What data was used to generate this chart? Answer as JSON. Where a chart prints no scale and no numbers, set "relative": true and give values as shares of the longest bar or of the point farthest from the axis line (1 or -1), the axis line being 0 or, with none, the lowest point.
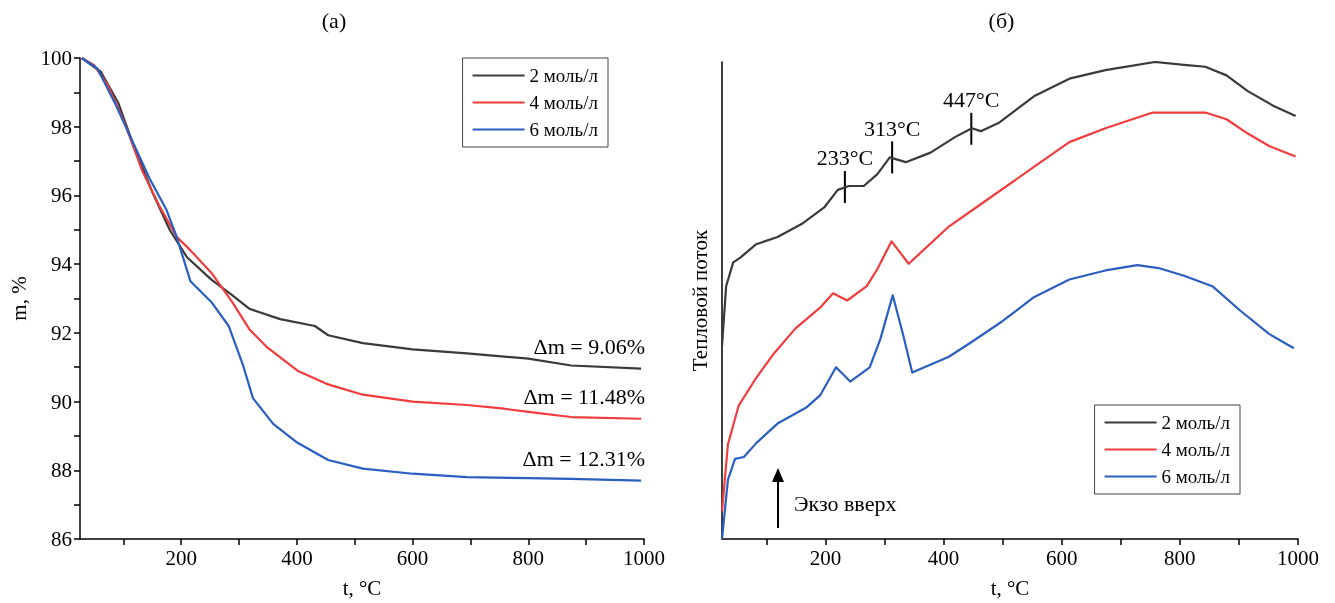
{
  "chart_data": [
    {
      "type": "line",
      "title": "(a)",
      "xlabel": "t, °C",
      "ylabel": "m, %",
      "xlim": [
        25,
        1000
      ],
      "ylim": [
        86,
        100
      ],
      "xticks": [
        {
          "value": 100,
          "label": null
        },
        200,
        {
          "value": 300,
          "label": null
        },
        400,
        {
          "value": 500,
          "label": null
        },
        600,
        {
          "value": 700,
          "label": null
        },
        800,
        {
          "value": 900,
          "label": null
        },
        1000
      ],
      "yticks": [
        86,
        {
          "value": 87,
          "label": null
        },
        88,
        {
          "value": 89,
          "label": null
        },
        90,
        {
          "value": 91,
          "label": null
        },
        92,
        {
          "value": 93,
          "label": null
        },
        94,
        {
          "value": 95,
          "label": null
        },
        96,
        {
          "value": 97,
          "label": null
        },
        98,
        {
          "value": 99,
          "label": null
        },
        100
      ],
      "legend": "top right",
      "annotations": [
        "Δm = 9.06%",
        "Δm = 11.48%",
        "Δm = 12.31%"
      ],
      "series": [
        {
          "name": "2 моль/л",
          "color": "#3a3a3a",
          "x": [
            28,
            61,
            91,
            121,
            150,
            180,
            210,
            252,
            288,
            318,
            371,
            431,
            454,
            514,
            600,
            694,
            800,
            874,
            995
          ],
          "values": [
            100,
            99.6,
            98.7,
            97.3,
            96.1,
            95.0,
            94.2,
            93.55,
            93.1,
            92.7,
            92.4,
            92.2,
            91.93,
            91.7,
            91.52,
            91.4,
            91.25,
            91.05,
            90.96
          ]
        },
        {
          "name": "4 моль/л",
          "color": "#f03c3c",
          "x": [
            28,
            49,
            73,
            103,
            133,
            162,
            192,
            216,
            252,
            288,
            318,
            347,
            401,
            454,
            514,
            600,
            694,
            754,
            800,
            874,
            995
          ],
          "values": [
            100,
            99.8,
            99.2,
            98.07,
            96.7,
            95.7,
            94.8,
            94.4,
            93.75,
            92.9,
            92.1,
            91.6,
            90.9,
            90.5,
            90.2,
            90.0,
            89.9,
            89.8,
            89.7,
            89.55,
            89.5
          ]
        },
        {
          "name": "6 моль/л",
          "color": "#2a5ec0",
          "x": [
            28,
            55,
            85,
            115,
            145,
            174,
            192,
            216,
            252,
            282,
            306,
            324,
            359,
            401,
            454,
            514,
            600,
            694,
            800,
            874,
            995
          ],
          "values": [
            100,
            99.7,
            98.7,
            97.6,
            96.5,
            95.6,
            94.8,
            93.5,
            92.9,
            92.2,
            91.1,
            90.1,
            89.35,
            88.8,
            88.3,
            88.05,
            87.9,
            87.8,
            87.77,
            87.75,
            87.7
          ]
        }
      ]
    },
    {
      "type": "line",
      "title": "(б)",
      "xlabel": "t, °C",
      "ylabel": "Тепловой поток",
      "relative": true,
      "xlim": [
        25,
        1000
      ],
      "xticks": [
        {
          "value": 100,
          "label": null
        },
        200,
        {
          "value": 300,
          "label": null
        },
        400,
        {
          "value": 500,
          "label": null
        },
        600,
        {
          "value": 700,
          "label": null
        },
        800,
        {
          "value": 900,
          "label": null
        },
        1000
      ],
      "legend": "bottom right",
      "annotations": [
        {
          "text": "233°C",
          "x": 233,
          "y": 0.738
        },
        {
          "text": "313°C",
          "x": 313,
          "y": 0.8
        },
        {
          "text": "447°C",
          "x": 447,
          "y": 0.86
        },
        "Экзо вверх"
      ],
      "series": [
        {
          "name": "2 моль/л",
          "color": "#3a3a3a",
          "x": [
            25,
            32,
            44,
            56,
            83,
            119,
            162,
            198,
            221,
            240,
            265,
            288,
            309,
            336,
            378,
            420,
            448,
            463,
            493,
            553,
            613,
            674,
            758,
            807,
            843,
            879,
            915,
            957,
            996
          ],
          "values": [
            0.404,
            0.53,
            0.58,
            0.59,
            0.618,
            0.633,
            0.662,
            0.695,
            0.732,
            0.74,
            0.74,
            0.765,
            0.8,
            0.79,
            0.81,
            0.843,
            0.861,
            0.855,
            0.872,
            0.928,
            0.965,
            0.983,
            1.0,
            0.994,
            0.99,
            0.972,
            0.939,
            0.909,
            0.887
          ]
        },
        {
          "name": "4 моль/л",
          "color": "#f03c3c",
          "x": [
            25,
            35,
            53,
            83,
            113,
            149,
            191,
            213,
            237,
            270,
            288,
            312,
            341,
            409,
            469,
            553,
            613,
            674,
            754,
            807,
            843,
            879,
            915,
            951,
            996
          ],
          "values": [
            0.058,
            0.198,
            0.279,
            0.338,
            0.389,
            0.441,
            0.485,
            0.515,
            0.5,
            0.53,
            0.566,
            0.624,
            0.577,
            0.655,
            0.707,
            0.78,
            0.832,
            0.861,
            0.894,
            0.894,
            0.894,
            0.88,
            0.85,
            0.824,
            0.802
          ]
        },
        {
          "name": "6 моль/л",
          "color": "#2a5ec0",
          "x": [
            25,
            35,
            47,
            62,
            83,
            119,
            167,
            191,
            218,
            242,
            275,
            293,
            314,
            332,
            347,
            409,
            445,
            499,
            553,
            613,
            674,
            728,
            764,
            807,
            855,
            903,
            951,
            993
          ],
          "values": [
            0,
            0.124,
            0.168,
            0.172,
            0.201,
            0.242,
            0.275,
            0.301,
            0.36,
            0.33,
            0.36,
            0.419,
            0.511,
            0.426,
            0.349,
            0.382,
            0.411,
            0.456,
            0.507,
            0.544,
            0.563,
            0.574,
            0.568,
            0.552,
            0.53,
            0.478,
            0.43,
            0.4
          ]
        }
      ]
    }
  ]
}
